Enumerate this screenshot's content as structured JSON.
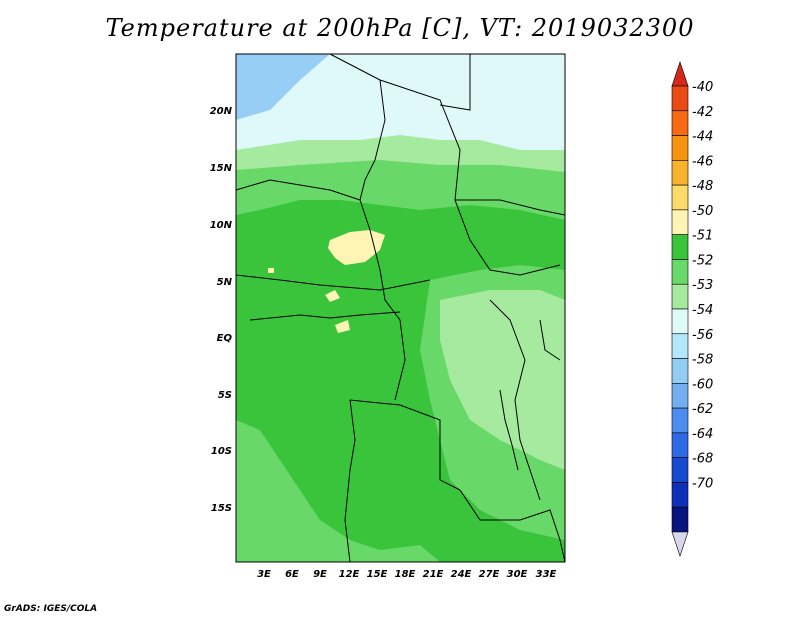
{
  "title": "Temperature at 200hPa [C], VT: 2019032300",
  "footer": "GrADS: IGES/COLA",
  "map": {
    "lat_ticks": [
      "20N",
      "15N",
      "10N",
      "5N",
      "EQ",
      "5S",
      "10S",
      "15S"
    ],
    "lon_ticks": [
      "3E",
      "6E",
      "9E",
      "12E",
      "15E",
      "18E",
      "21E",
      "24E",
      "27E",
      "30E",
      "33E"
    ]
  },
  "colorbar": {
    "labels": [
      "-40",
      "-42",
      "-44",
      "-46",
      "-48",
      "-50",
      "-51",
      "-52",
      "-53",
      "-54",
      "-56",
      "-58",
      "-60",
      "-62",
      "-64",
      "-68",
      "-70"
    ],
    "colors": [
      "#d42a1a",
      "#ea4a14",
      "#f56a12",
      "#f79512",
      "#f8b42e",
      "#fbdb6a",
      "#fef5b4",
      "#3ac43a",
      "#68d868",
      "#a6eaa0",
      "#e0fcf8",
      "#b2e6f8",
      "#92cef4",
      "#72aef0",
      "#4c8ef0",
      "#2e6ae6",
      "#184ad0",
      "#0e30b8",
      "#0a1480",
      "#d8d8ec"
    ]
  },
  "colors": {
    "ocean": "#dff9fa",
    "sea_blue": "#96cef5",
    "land_base": "#39c43c"
  }
}
